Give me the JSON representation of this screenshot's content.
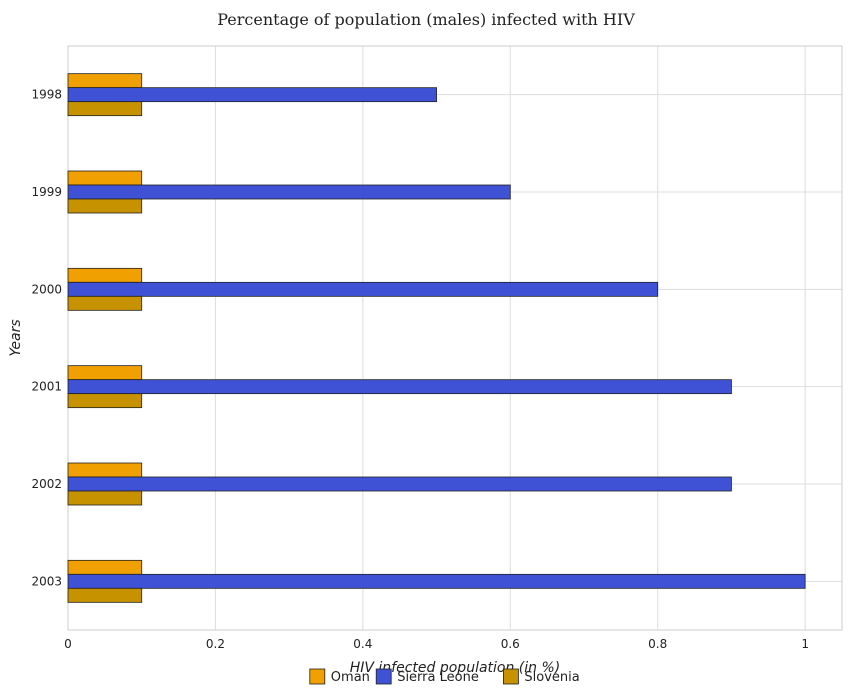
{
  "chart_data": {
    "type": "bar",
    "orientation": "horizontal",
    "title": "Percentage of population (males) infected with HIV",
    "xlabel": "HIV infected population (in %)",
    "ylabel": "Years",
    "categories": [
      "1998",
      "1999",
      "2000",
      "2001",
      "2002",
      "2003"
    ],
    "series": [
      {
        "name": "Oman",
        "color": "#f0a000",
        "values": [
          0.1,
          0.1,
          0.1,
          0.1,
          0.1,
          0.1
        ]
      },
      {
        "name": "Sierra Leone",
        "color": "#3f51d4",
        "values": [
          0.5,
          0.6,
          0.8,
          0.9,
          0.9,
          1.0
        ]
      },
      {
        "name": "Slovenia",
        "color": "#c69200",
        "values": [
          0.1,
          0.1,
          0.1,
          0.1,
          0.1,
          0.1
        ]
      }
    ],
    "xlim": [
      0,
      1.05
    ],
    "xticks": [
      "0",
      "0.2",
      "0.4",
      "0.6",
      "0.8",
      "1"
    ],
    "grid": true,
    "legend_position": "bottom"
  }
}
